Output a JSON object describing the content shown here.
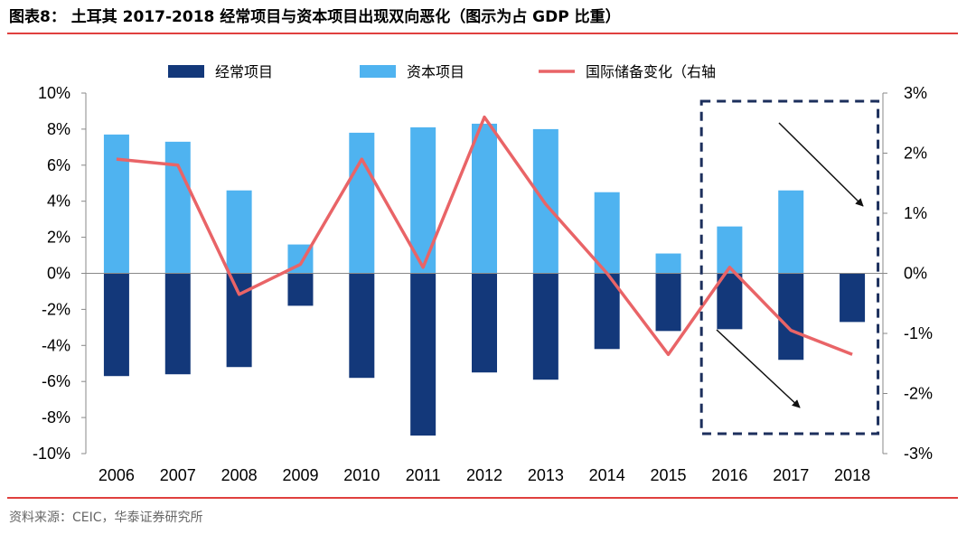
{
  "header": {
    "title": "图表8：  土耳其 2017-2018 经常项目与资本项目出现双向恶化（图示为占 GDP 比重）"
  },
  "footer": {
    "source": "资料来源：CEIC，华泰证券研究所"
  },
  "colors": {
    "rule": "#e0403e",
    "current_account": "#13387a",
    "capital_account": "#4fb3f0",
    "reserve_line": "#e96467",
    "highlight_box": "#1c2f5c"
  },
  "chart_data": {
    "type": "bar",
    "categories": [
      "2006",
      "2007",
      "2008",
      "2009",
      "2010",
      "2011",
      "2012",
      "2013",
      "2014",
      "2015",
      "2016",
      "2017",
      "2018"
    ],
    "series": [
      {
        "name": "经常项目",
        "axis": "left",
        "type": "bar",
        "values": [
          -5.7,
          -5.6,
          -5.2,
          -1.8,
          -5.8,
          -9.0,
          -5.5,
          -5.9,
          -4.2,
          -3.2,
          -3.1,
          -4.8,
          -2.7
        ]
      },
      {
        "name": "资本项目",
        "axis": "left",
        "type": "bar",
        "values": [
          7.7,
          7.3,
          4.6,
          1.6,
          7.8,
          8.1,
          8.3,
          8.0,
          4.5,
          1.1,
          2.6,
          4.6,
          null
        ]
      },
      {
        "name": "国际储备变化（右轴",
        "axis": "right",
        "type": "line",
        "values": [
          1.9,
          1.8,
          -0.35,
          0.15,
          1.9,
          0.1,
          2.6,
          1.15,
          0.0,
          -1.35,
          0.1,
          -0.95,
          -1.35
        ]
      }
    ],
    "left_axis": {
      "ylim": [
        -10,
        10
      ],
      "ticks": [
        10,
        8,
        6,
        4,
        2,
        0,
        -2,
        -4,
        -6,
        -8,
        -10
      ],
      "tick_labels": [
        "10%",
        "8%",
        "6%",
        "4%",
        "2%",
        "0%",
        "-2%",
        "-4%",
        "-6%",
        "-8%",
        "-10%"
      ]
    },
    "right_axis": {
      "ylim": [
        -3,
        3
      ],
      "ticks": [
        3,
        2,
        1,
        0,
        -1,
        -2,
        -3
      ],
      "tick_labels": [
        "3%",
        "2%",
        "1%",
        "0%",
        "-1%",
        "-2%",
        "-3%"
      ]
    },
    "legend_position": "top",
    "grid": false,
    "annotation": {
      "highlight_categories": [
        "2016",
        "2018"
      ],
      "arrows": [
        "down-right",
        "down-right"
      ]
    }
  }
}
